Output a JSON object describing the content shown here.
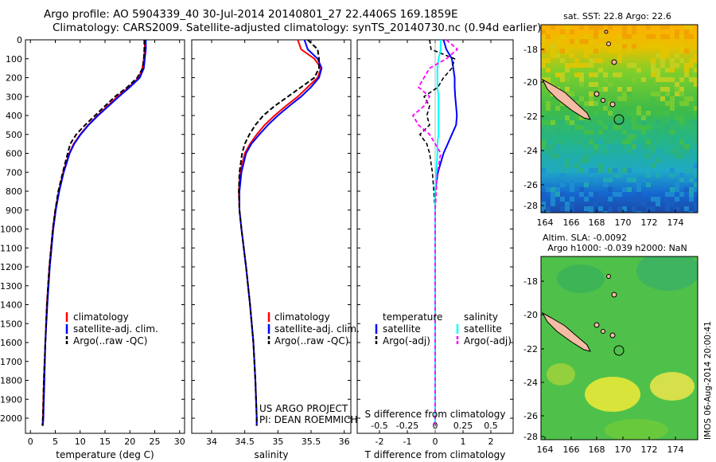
{
  "header": {
    "line1": "Argo profile: AO 5904339_40 30-Jul-2014 20140801_27 22.4406S 169.1859E",
    "line2": "Climatology: CARS2009. Satellite-adjusted climatology: synTS_20140730.nc (0.94d earlier)"
  },
  "credits": {
    "project": "US ARGO PROJECT",
    "pi": "PI: DEAN ROEMMICH",
    "stamp": "IMOS 06-Aug-2014 20:00:41"
  },
  "colors": {
    "climatology": "#ff0000",
    "satellite": "#0000ff",
    "argo": "#000000",
    "sal_satellite": "#00ffff",
    "sal_argo": "#ff00ff",
    "coast": "#f4bca4"
  },
  "legends": {
    "profile": [
      "climatology",
      "satellite-adj. clim.",
      "Argo(..raw -QC)"
    ],
    "diff_header_t": "temperature",
    "diff_header_s": "salinity",
    "diff_t": [
      "satellite",
      "Argo(-adj)"
    ],
    "diff_s": [
      "satellite",
      "Argo(-adj)"
    ]
  },
  "maps": {
    "sst_title": "sat. SST: 22.8  Argo: 22.6",
    "sla_title_1": "Altim. SLA: -0.0092",
    "sla_title_2": "Argo h1000: -0.039 h2000: NaN",
    "lon_ticks": [
      "164",
      "166",
      "168",
      "170",
      "172",
      "174"
    ],
    "lat_ticks": [
      "-18",
      "-20",
      "-22",
      "-24",
      "-26",
      "-28"
    ]
  },
  "chart_data": [
    {
      "type": "line",
      "xlabel": "temperature (deg C)",
      "ylabel": "",
      "xlim": [
        -1,
        31
      ],
      "ylim": [
        2080,
        0
      ],
      "xticks": [
        "0",
        "5",
        "10",
        "15",
        "20",
        "25",
        "30"
      ],
      "yticks": [
        "0",
        "100",
        "200",
        "300",
        "400",
        "500",
        "600",
        "700",
        "800",
        "900",
        "1000",
        "1100",
        "1200",
        "1300",
        "1400",
        "1500",
        "1600",
        "1700",
        "1800",
        "1900",
        "2000"
      ],
      "depth": [
        0,
        50,
        100,
        150,
        200,
        250,
        300,
        350,
        400,
        450,
        500,
        550,
        600,
        700,
        800,
        900,
        1000,
        1200,
        1400,
        1600,
        1800,
        2000,
        2040
      ],
      "series": [
        {
          "name": "climatology",
          "values": [
            23,
            23,
            22.8,
            22.5,
            21.8,
            19.8,
            17.5,
            15.5,
            13.5,
            11.6,
            10.0,
            8.7,
            7.8,
            6.6,
            5.7,
            5.0,
            4.5,
            3.8,
            3.3,
            3.0,
            2.7,
            2.5,
            2.4
          ]
        },
        {
          "name": "satellite-adj. clim.",
          "values": [
            23.2,
            23.2,
            23.0,
            22.8,
            22.0,
            20.0,
            17.8,
            15.7,
            13.6,
            11.7,
            10.1,
            8.8,
            7.9,
            6.7,
            5.8,
            5.1,
            4.6,
            3.9,
            3.4,
            3.0,
            2.8,
            2.6,
            2.5
          ]
        },
        {
          "name": "Argo(..raw -QC)",
          "values": [
            22.9,
            22.9,
            22.8,
            22.6,
            21.5,
            19.5,
            17.0,
            15.0,
            13.0,
            11.0,
            9.2,
            8.0,
            7.5,
            6.5,
            5.6,
            5.0,
            4.5,
            3.8,
            3.3,
            3.0,
            2.7,
            2.5,
            2.4
          ]
        }
      ]
    },
    {
      "type": "line",
      "xlabel": "salinity",
      "xlim": [
        33.7,
        36.1
      ],
      "ylim": [
        2080,
        0
      ],
      "xticks": [
        "34",
        "34.5",
        "35",
        "35.5",
        "36"
      ],
      "depth": [
        0,
        50,
        100,
        150,
        200,
        250,
        300,
        350,
        400,
        450,
        500,
        550,
        600,
        700,
        800,
        900,
        1000,
        1200,
        1400,
        1600,
        1800,
        2000,
        2040
      ],
      "series": [
        {
          "name": "climatology",
          "values": [
            35.3,
            35.35,
            35.55,
            35.65,
            35.6,
            35.45,
            35.3,
            35.12,
            34.95,
            34.8,
            34.68,
            34.58,
            34.5,
            34.43,
            34.41,
            34.42,
            34.45,
            34.52,
            34.58,
            34.63,
            34.66,
            34.68,
            34.68
          ]
        },
        {
          "name": "satellite-adj. clim.",
          "values": [
            35.4,
            35.45,
            35.6,
            35.66,
            35.62,
            35.5,
            35.35,
            35.17,
            35.0,
            34.85,
            34.72,
            34.6,
            34.52,
            34.45,
            34.42,
            34.42,
            34.45,
            34.52,
            34.58,
            34.63,
            34.66,
            34.68,
            34.68
          ]
        },
        {
          "name": "Argo(..raw -QC)",
          "values": [
            35.45,
            35.6,
            35.62,
            35.62,
            35.55,
            35.35,
            35.15,
            34.95,
            34.78,
            34.66,
            34.57,
            34.5,
            34.46,
            34.42,
            34.41,
            34.42,
            34.45,
            34.52,
            34.58,
            34.63,
            34.66,
            34.68,
            34.68
          ]
        }
      ]
    },
    {
      "type": "line",
      "title_top": "S difference from climatology",
      "s_ticks": [
        "-0.5",
        "-0.25",
        "0",
        "0.25",
        "0.5"
      ],
      "s_tick_values": [
        -0.5,
        -0.25,
        0,
        0.25,
        0.5
      ],
      "xlabel": "T difference from climatology",
      "xlim": [
        -2.8,
        2.8
      ],
      "ylim": [
        2080,
        0
      ],
      "xticks": [
        "-2",
        "-1",
        "0",
        "1",
        "2"
      ],
      "depth": [
        0,
        50,
        100,
        150,
        200,
        250,
        300,
        350,
        400,
        450,
        500,
        550,
        600,
        700,
        800,
        900,
        1000,
        1200,
        1400,
        1600,
        1800,
        2000,
        2040
      ],
      "series": [
        {
          "name": "T satellite",
          "values": [
            0.3,
            0.4,
            0.6,
            0.65,
            0.7,
            0.7,
            0.72,
            0.75,
            0.78,
            0.75,
            0.6,
            0.45,
            0.3,
            0.1,
            0,
            0,
            0,
            0,
            0,
            0,
            0,
            0,
            0
          ]
        },
        {
          "name": "T Argo(-adj)",
          "values": [
            -0.2,
            -0.15,
            0.7,
            0.6,
            0.3,
            0.1,
            -0.4,
            -0.2,
            -0.3,
            -0.2,
            -0.55,
            -0.3,
            -0.2,
            -0.1,
            -0.05,
            0,
            0,
            0,
            0,
            0,
            0,
            0,
            0
          ]
        },
        {
          "name": "S satellite",
          "values": [
            0.05,
            0.05,
            0.03,
            0.02,
            0.02,
            0.02,
            0.03,
            0.03,
            0.03,
            0.03,
            0.03,
            0.02,
            0.02,
            0.01,
            0,
            0,
            0,
            0,
            0,
            0,
            0,
            0,
            0
          ]
        },
        {
          "name": "S Argo(-adj)",
          "values": [
            0.1,
            0.2,
            0.1,
            -0.05,
            -0.1,
            -0.15,
            -0.05,
            -0.1,
            -0.2,
            -0.15,
            -0.05,
            0.0,
            0.05,
            0.02,
            0.01,
            0,
            0,
            0,
            0,
            0,
            0,
            0,
            0
          ]
        }
      ]
    }
  ]
}
